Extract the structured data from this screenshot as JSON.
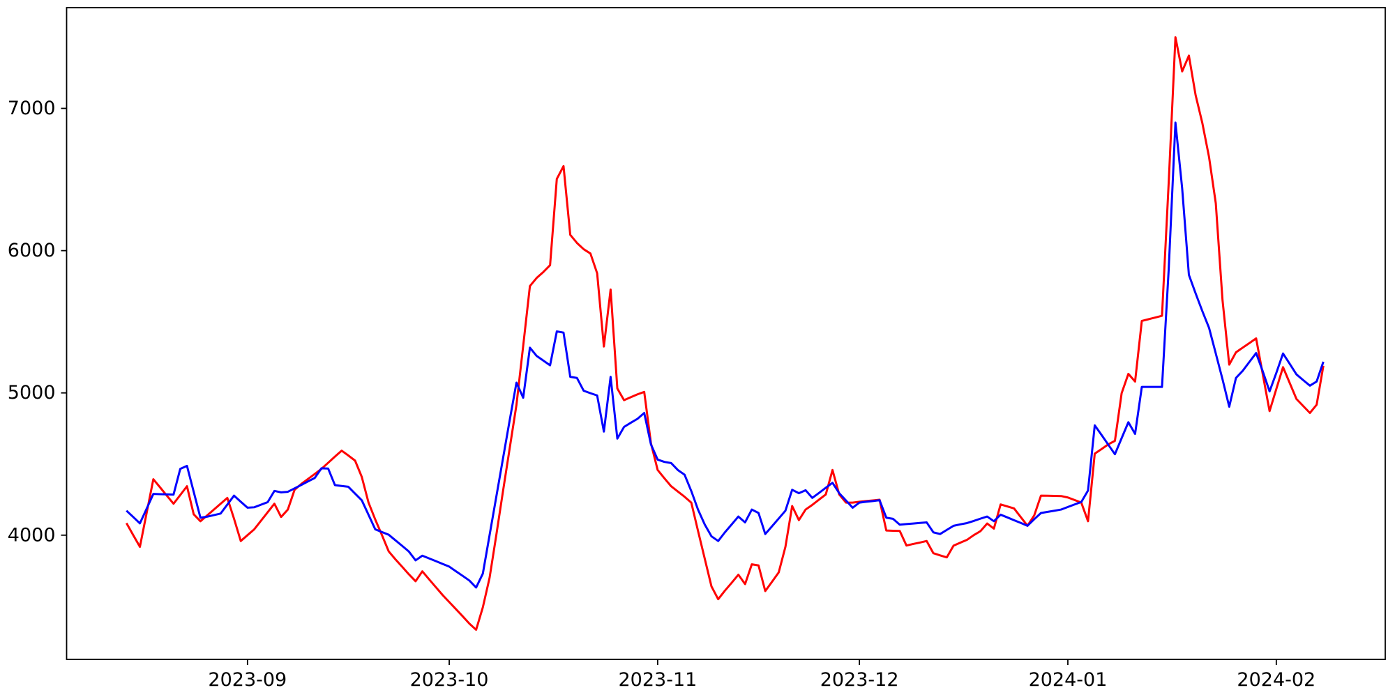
{
  "chart_data": {
    "type": "line",
    "title": "",
    "grid": false,
    "legend": null,
    "x_axis": {
      "start_date": "2023-08-14",
      "freq_days": 1,
      "num_points": 179,
      "tick_labels": [
        "2023-09",
        "2023-10",
        "2023-11",
        "2023-12",
        "2024-01",
        "2024-02"
      ],
      "tick_dates": [
        "2023-09-01",
        "2023-10-01",
        "2023-11-01",
        "2023-12-01",
        "2024-01-01",
        "2024-02-01"
      ],
      "xlim_days": [
        -8.9,
        187.2
      ]
    },
    "y_axis": {
      "tick_labels": [
        "4000",
        "5000",
        "6000",
        "7000"
      ],
      "tick_values": [
        4000,
        5000,
        6000,
        7000
      ],
      "ylim": [
        3127,
        7708
      ]
    },
    "series": [
      {
        "name": "red-series",
        "color": "#ff0000",
        "values": [
          4085,
          4001,
          3918,
          4156,
          4393,
          4336,
          4278,
          4221,
          4282,
          4344,
          4147,
          4098,
          4139,
          4180,
          4221,
          4262,
          4115,
          3959,
          4000,
          4041,
          4101,
          4161,
          4221,
          4128,
          4180,
          4319,
          4360,
          4395,
          4430,
          4466,
          4509,
          4552,
          4594,
          4560,
          4524,
          4409,
          4229,
          4110,
          4000,
          3886,
          3830,
          3778,
          3725,
          3676,
          3746,
          3690,
          3635,
          3580,
          3530,
          3480,
          3430,
          3378,
          3335,
          3493,
          3700,
          4000,
          4310,
          4613,
          4916,
          5330,
          5751,
          5808,
          5850,
          5898,
          6504,
          6594,
          6111,
          6054,
          6010,
          5980,
          5841,
          5326,
          5727,
          5031,
          4949,
          4970,
          4990,
          5007,
          4646,
          4458,
          4400,
          4344,
          4307,
          4270,
          4229,
          4030,
          3835,
          3640,
          3550,
          3610,
          3665,
          3722,
          3656,
          3795,
          3787,
          3607,
          3672,
          3738,
          3918,
          4205,
          4106,
          4180,
          4213,
          4250,
          4286,
          4458,
          4286,
          4229,
          4229,
          4235,
          4240,
          4244,
          4249,
          4033,
          4031,
          4030,
          3927,
          3938,
          3948,
          3959,
          3873,
          3858,
          3844,
          3926,
          3947,
          3967,
          4000,
          4028,
          4082,
          4046,
          4216,
          4202,
          4188,
          4127,
          4066,
          4139,
          4278,
          4277,
          4276,
          4275,
          4265,
          4247,
          4229,
          4098,
          4573,
          4605,
          4638,
          4663,
          4998,
          5134,
          5080,
          5506,
          5518,
          5530,
          5542,
          6480,
          7500,
          7260,
          7371,
          7093,
          6897,
          6657,
          6333,
          5653,
          5199,
          5285,
          5318,
          5350,
          5383,
          5128,
          4872,
          5027,
          5181,
          5069,
          4957,
          4908,
          4859,
          4917,
          5191
        ]
      },
      {
        "name": "blue-series",
        "color": "#0000ff",
        "values": [
          4172,
          4128,
          4083,
          4186,
          4290,
          4288,
          4287,
          4285,
          4466,
          4487,
          4305,
          4123,
          4130,
          4141,
          4152,
          4215,
          4278,
          4235,
          4193,
          4196,
          4214,
          4232,
          4311,
          4301,
          4305,
          4329,
          4353,
          4378,
          4402,
          4470,
          4468,
          4352,
          4346,
          4340,
          4292,
          4245,
          4143,
          4041,
          4022,
          4003,
          3964,
          3925,
          3885,
          3823,
          3856,
          3837,
          3818,
          3798,
          3779,
          3746,
          3714,
          3681,
          3632,
          3730,
          4000,
          4270,
          4540,
          4810,
          5072,
          4966,
          5318,
          5260,
          5227,
          5194,
          5432,
          5424,
          5113,
          5105,
          5015,
          4998,
          4982,
          4728,
          5113,
          4679,
          4761,
          4790,
          4818,
          4859,
          4638,
          4531,
          4515,
          4507,
          4458,
          4425,
          4310,
          4180,
          4075,
          3992,
          3959,
          4020,
          4075,
          4131,
          4090,
          4180,
          4156,
          4008,
          4062,
          4117,
          4172,
          4319,
          4295,
          4316,
          4262,
          4297,
          4333,
          4368,
          4295,
          4244,
          4193,
          4229,
          4235,
          4240,
          4246,
          4123,
          4115,
          4074,
          4078,
          4082,
          4086,
          4090,
          4020,
          4008,
          4037,
          4066,
          4076,
          4085,
          4100,
          4116,
          4131,
          4098,
          4144,
          4125,
          4105,
          4086,
          4066,
          4112,
          4156,
          4164,
          4172,
          4180,
          4198,
          4216,
          4233,
          4314,
          4772,
          4705,
          4637,
          4569,
          4682,
          4794,
          4712,
          5042,
          5042,
          5042,
          5042,
          5870,
          6900,
          6438,
          5830,
          5700,
          5575,
          5457,
          5277,
          5096,
          4903,
          5105,
          5155,
          5218,
          5280,
          5150,
          5011,
          5140,
          5277,
          5204,
          5130,
          5090,
          5051,
          5080,
          5219
        ]
      }
    ],
    "style": {
      "background_color": "#ffffff",
      "spine_color": "#000000",
      "tick_label_color": "#000000",
      "line_width": 3,
      "spine_width": 1.8,
      "tick_font_size": 27
    }
  }
}
